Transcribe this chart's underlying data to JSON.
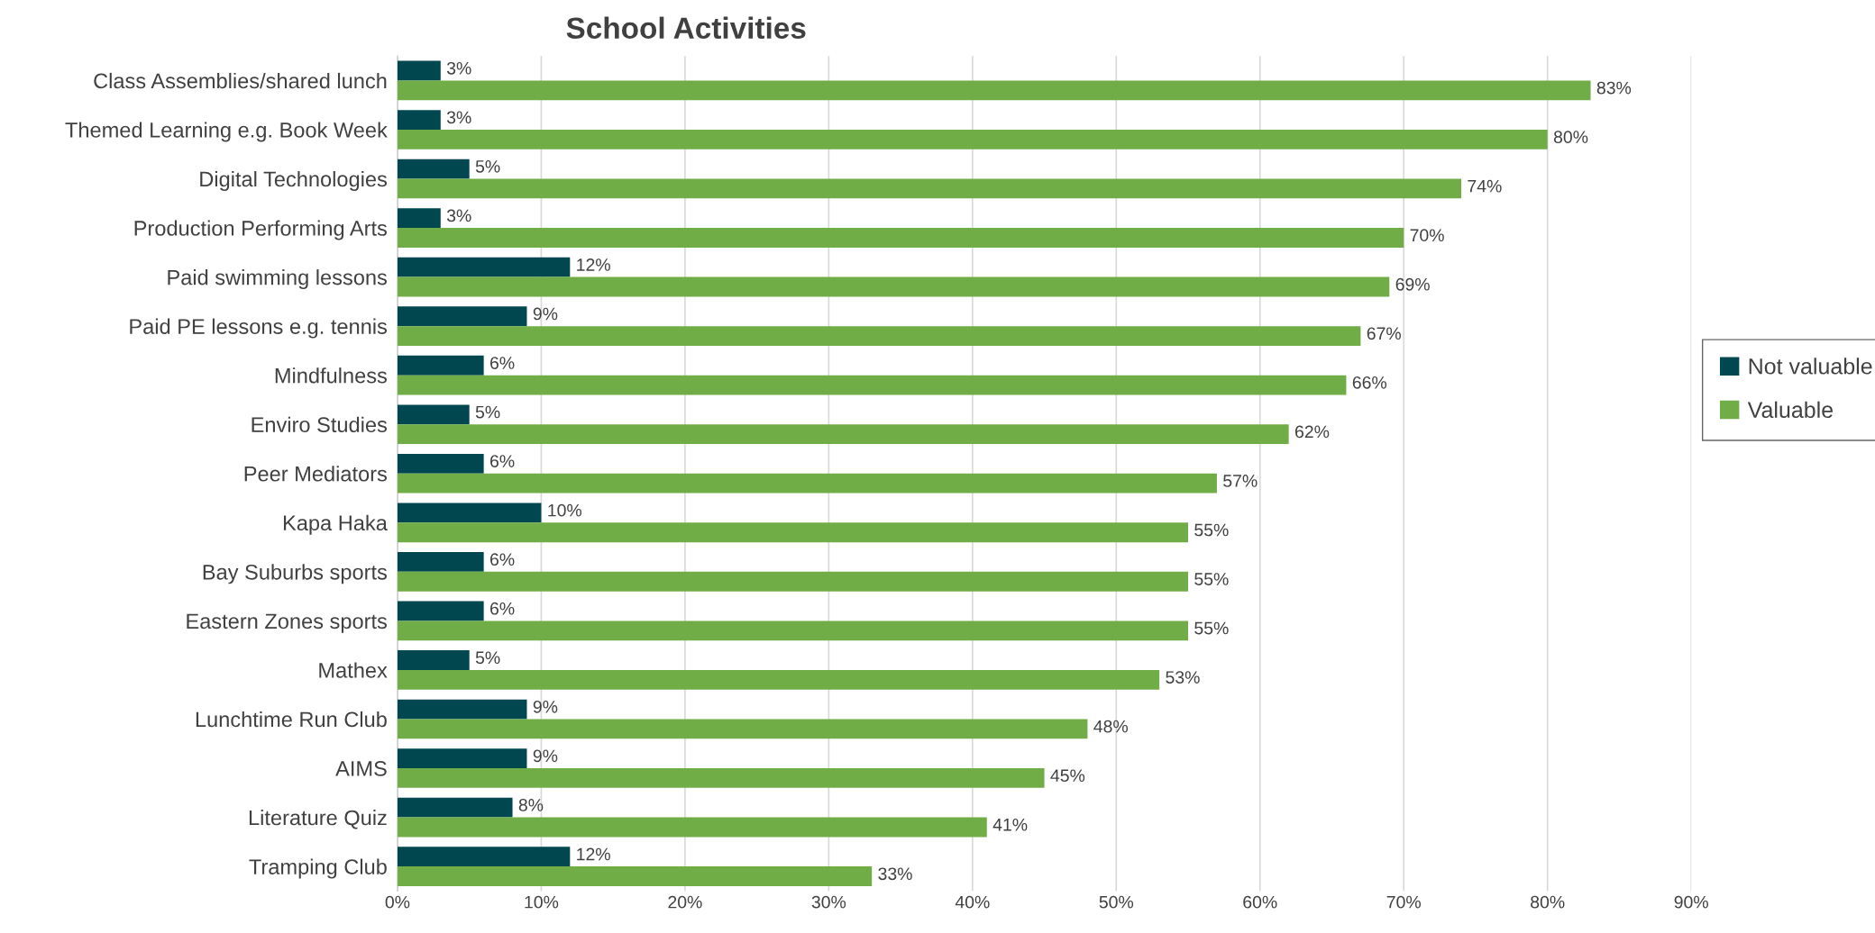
{
  "chart_data": {
    "type": "bar",
    "orientation": "horizontal",
    "title": "School Activities",
    "categories": [
      "Class Assemblies/shared lunch",
      "Themed Learning e.g. Book Week",
      "Digital Technologies",
      "Production Performing Arts",
      "Paid swimming lessons",
      "Paid PE lessons e.g. tennis",
      "Mindfulness",
      "Enviro Studies",
      "Peer Mediators",
      "Kapa Haka",
      "Bay Suburbs sports",
      "Eastern Zones sports",
      "Mathex",
      "Lunchtime Run Club",
      "AIMS",
      "Literature Quiz",
      "Tramping Club"
    ],
    "series": [
      {
        "name": "Not valuable",
        "color": "#00474f",
        "values": [
          3,
          3,
          5,
          3,
          12,
          9,
          6,
          5,
          6,
          10,
          6,
          6,
          5,
          9,
          9,
          8,
          12
        ],
        "value_labels": [
          "3%",
          "3%",
          "5%",
          "3%",
          "12%",
          "9%",
          "6%",
          "5%",
          "6%",
          "10%",
          "6%",
          "6%",
          "5%",
          "9%",
          "9%",
          "8%",
          "12%"
        ]
      },
      {
        "name": "Valuable",
        "color": "#70ad47",
        "values": [
          83,
          80,
          74,
          70,
          69,
          67,
          66,
          62,
          57,
          55,
          55,
          55,
          53,
          48,
          45,
          41,
          33
        ],
        "value_labels": [
          "83%",
          "80%",
          "74%",
          "70%",
          "69%",
          "67%",
          "66%",
          "62%",
          "57%",
          "55%",
          "55%",
          "55%",
          "53%",
          "48%",
          "45%",
          "41%",
          "33%"
        ]
      }
    ],
    "xlim": [
      0,
      90
    ],
    "xticks": [
      {
        "value": 0,
        "label": "0%"
      },
      {
        "value": 10,
        "label": "10%"
      },
      {
        "value": 20,
        "label": "20%"
      },
      {
        "value": 30,
        "label": "30%"
      },
      {
        "value": 40,
        "label": "40%"
      },
      {
        "value": 50,
        "label": "50%"
      },
      {
        "value": 60,
        "label": "60%"
      },
      {
        "value": 70,
        "label": "70%"
      },
      {
        "value": 80,
        "label": "80%"
      },
      {
        "value": 90,
        "label": "90%"
      }
    ],
    "grid": "x",
    "legend": "right"
  }
}
